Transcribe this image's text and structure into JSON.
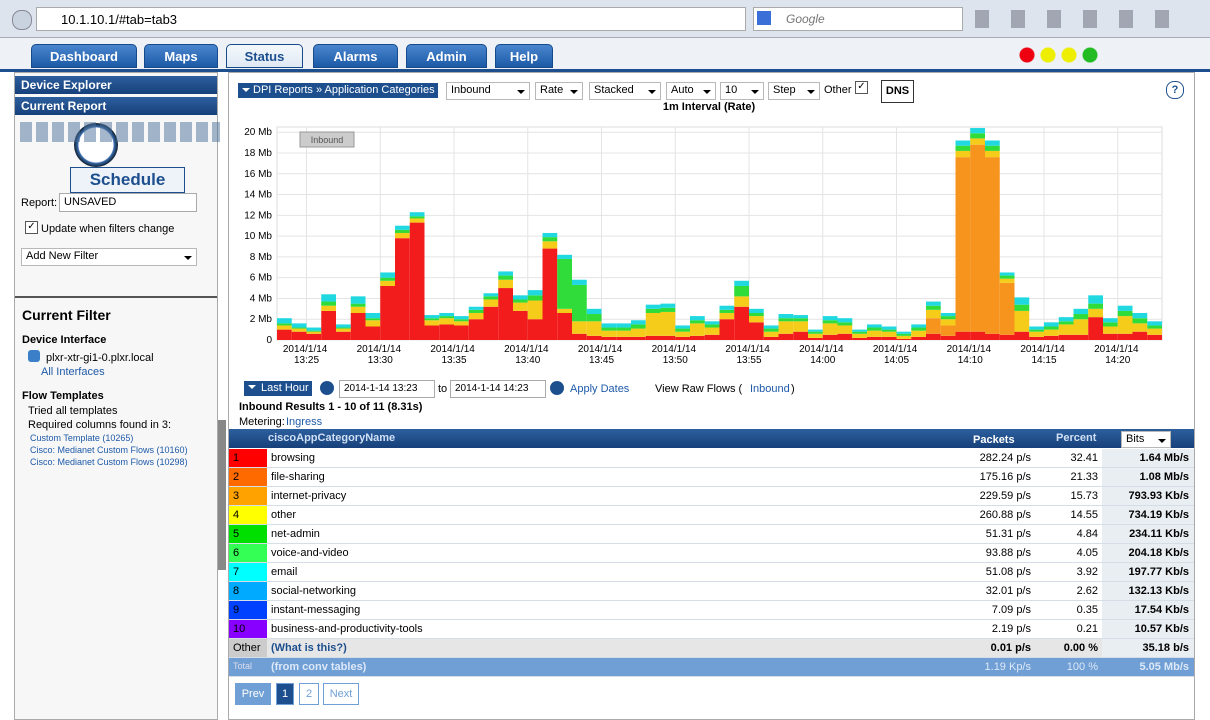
{
  "browser": {
    "url": "10.1.10.1/#tab=tab3",
    "search": "Google"
  },
  "tabs": [
    "Dashboard",
    "Maps",
    "Status",
    "Alarms",
    "Admin",
    "Help"
  ],
  "sidebar": {
    "device_explorer": "Device Explorer",
    "current_report": "Current Report",
    "schedule": "Schedule",
    "report_label": "Report:",
    "report_name": "UNSAVED",
    "update_checkbox": "Update when filters change",
    "add_filter": "Add New Filter",
    "current_filter": "Current Filter",
    "device_interface": "Device Interface",
    "interface": "plxr-xtr-gi1-0.plxr.local",
    "all_interfaces": "All Interfaces",
    "flow_templates": "Flow Templates",
    "tried": "Tried all templates",
    "required": "Required columns found in 3:",
    "templates": [
      "Custom Template (10265)",
      "Cisco: Medianet Custom Flows (10160)",
      "Cisco: Medianet Custom Flows (10298)"
    ]
  },
  "toolbar": {
    "breadcrumb": "DPI Reports » Application Categories",
    "selects": [
      "Inbound",
      "Rate",
      "Stacked",
      "Auto",
      "10",
      "Step"
    ],
    "other": "Other",
    "dns": "DNS"
  },
  "chart_data": {
    "type": "bar",
    "stacked": true,
    "title": "1m Interval (Rate)",
    "annotation": "Inbound",
    "grid": true,
    "ylim": [
      0,
      20.5
    ],
    "yticks": [
      0,
      {
        "value": 2,
        "label": "2 Mb"
      },
      {
        "value": 4,
        "label": "4 Mb"
      },
      {
        "value": 6,
        "label": "6 Mb"
      },
      {
        "value": 8,
        "label": "8 Mb"
      },
      {
        "value": 10,
        "label": "10 Mb"
      },
      {
        "value": 12,
        "label": "12 Mb"
      },
      {
        "value": 14,
        "label": "14 Mb"
      },
      {
        "value": 16,
        "label": "16 Mb"
      },
      {
        "value": 18,
        "label": "18 Mb"
      },
      {
        "value": 20,
        "label": "20 Mb"
      }
    ],
    "categories": [
      null,
      null,
      "2014/1/14 13:25",
      null,
      null,
      null,
      null,
      "2014/1/14 13:30",
      null,
      null,
      null,
      null,
      "2014/1/14 13:35",
      null,
      null,
      null,
      null,
      "2014/1/14 13:40",
      null,
      null,
      null,
      null,
      "2014/1/14 13:45",
      null,
      null,
      null,
      null,
      "2014/1/14 13:50",
      null,
      null,
      null,
      null,
      "2014/1/14 13:55",
      null,
      null,
      null,
      null,
      "2014/1/14 14:00",
      null,
      null,
      null,
      null,
      "2014/1/14 14:05",
      null,
      null,
      null,
      null,
      "2014/1/14 14:10",
      null,
      null,
      null,
      null,
      "2014/1/14 14:15",
      null,
      null,
      null,
      null,
      "2014/1/14 14:20",
      null,
      null
    ],
    "series": [
      {
        "name": "browsing",
        "color": "#f21c1c",
        "values": [
          1.0,
          0.8,
          0.6,
          2.8,
          0.8,
          2.6,
          1.3,
          5.2,
          9.8,
          11.3,
          1.4,
          1.5,
          1.4,
          2.0,
          3.2,
          5.0,
          2.8,
          2.0,
          8.8,
          2.6,
          0.6,
          0.4,
          0.3,
          0.3,
          0.3,
          0.4,
          0.4,
          0.3,
          0.4,
          0.5,
          2.0,
          3.2,
          1.7,
          0.3,
          0.6,
          0.8,
          0.2,
          0.5,
          0.6,
          0.2,
          0.3,
          0.3,
          0.1,
          0.3,
          0.6,
          0.4,
          0.8,
          0.8,
          0.6,
          0.5,
          0.8,
          0.3,
          0.4,
          0.5,
          0.5,
          2.2,
          0.6,
          0.6,
          0.8,
          0.5
        ]
      },
      {
        "name": "internet-privacy",
        "color": "#f7941d",
        "values": [
          0,
          0,
          0,
          0,
          0,
          0,
          0,
          0,
          0,
          0,
          0,
          0,
          0,
          0,
          0,
          0,
          0,
          0,
          0,
          0,
          0,
          0,
          0,
          0,
          0,
          0,
          0,
          0,
          0,
          0,
          0,
          0,
          0,
          0,
          0,
          0,
          0,
          0,
          0,
          0,
          0,
          0,
          0,
          0,
          1.5,
          1.0,
          16.8,
          18.0,
          17.0,
          5.0,
          0,
          0,
          0,
          0,
          0,
          0,
          0,
          0,
          0,
          0
        ]
      },
      {
        "name": "other",
        "color": "#f6cc1a",
        "values": [
          0.4,
          0.3,
          0.2,
          0.5,
          0.3,
          0.6,
          0.6,
          0.5,
          0.5,
          0.4,
          0.5,
          0.6,
          0.4,
          0.6,
          0.7,
          0.8,
          0.8,
          1.8,
          0.7,
          0.4,
          1.2,
          1.4,
          0.6,
          0.6,
          0.8,
          2.2,
          2.3,
          0.5,
          1.2,
          0.7,
          0.6,
          1.0,
          0.6,
          0.5,
          1.2,
          1.0,
          0.4,
          1.1,
          0.8,
          0.4,
          0.6,
          0.5,
          0.3,
          0.6,
          0.8,
          0.6,
          0.6,
          0.6,
          0.6,
          0.4,
          2.0,
          0.5,
          0.6,
          1.0,
          1.5,
          0.8,
          0.7,
          1.7,
          0.8,
          0.6
        ]
      },
      {
        "name": "net-admin",
        "color": "#2fdc3a",
        "values": [
          0.2,
          0.1,
          0.1,
          0.4,
          0.1,
          0.3,
          0.2,
          0.3,
          0.3,
          0.2,
          0.2,
          0.2,
          0.2,
          0.3,
          0.3,
          0.4,
          0.3,
          0.5,
          0.4,
          4.8,
          3.5,
          0.7,
          0.3,
          0.3,
          0.4,
          0.4,
          0.4,
          0.3,
          0.3,
          0.3,
          0.3,
          1.0,
          0.3,
          0.3,
          0.3,
          0.3,
          0.2,
          0.3,
          0.3,
          0.2,
          0.3,
          0.2,
          0.2,
          0.3,
          0.4,
          0.3,
          0.5,
          0.5,
          0.5,
          0.3,
          0.6,
          0.2,
          0.3,
          0.3,
          0.5,
          0.5,
          0.4,
          0.5,
          0.5,
          0.3
        ]
      },
      {
        "name": "email",
        "color": "#20d8e0",
        "values": [
          0.5,
          0.4,
          0.3,
          0.7,
          0.3,
          0.7,
          0.5,
          0.5,
          0.4,
          0.4,
          0.3,
          0.3,
          0.3,
          0.3,
          0.3,
          0.4,
          0.4,
          0.5,
          0.4,
          0.4,
          0.5,
          0.5,
          0.4,
          0.4,
          0.4,
          0.4,
          0.4,
          0.3,
          0.4,
          0.3,
          0.4,
          0.5,
          0.4,
          0.3,
          0.4,
          0.3,
          0.2,
          0.4,
          0.4,
          0.2,
          0.3,
          0.3,
          0.2,
          0.3,
          0.4,
          0.3,
          0.5,
          0.5,
          0.5,
          0.3,
          0.7,
          0.3,
          0.4,
          0.4,
          0.5,
          0.8,
          0.4,
          0.5,
          0.5,
          0.4
        ]
      }
    ]
  },
  "dates": {
    "range": "Last Hour",
    "from": "2014-1-14 13:23",
    "to_label": "to",
    "to": "2014-1-14 14:23",
    "apply": "Apply Dates",
    "raw_flows": "View Raw Flows (",
    "raw_link": "Inbound",
    "raw_close": ")"
  },
  "results": {
    "summary": "Inbound Results 1 - 10 of 11 (8.31s)",
    "metering_label": "Metering:",
    "metering": "Ingress"
  },
  "table": {
    "headers": [
      "ciscoAppCategoryName",
      "Packets",
      "Percent",
      "Bits"
    ],
    "colors": [
      "#ff0000",
      "#ff6a00",
      "#ffa200",
      "#ffff00",
      "#00e000",
      "#33ff55",
      "#00ffff",
      "#00aaff",
      "#0040ff",
      "#8800ff"
    ],
    "rows": [
      [
        "1",
        "browsing",
        "282.24 p/s",
        "32.41",
        "1.64 Mb/s"
      ],
      [
        "2",
        "file-sharing",
        "175.16 p/s",
        "21.33",
        "1.08 Mb/s"
      ],
      [
        "3",
        "internet-privacy",
        "229.59 p/s",
        "15.73",
        "793.93 Kb/s"
      ],
      [
        "4",
        "other",
        "260.88 p/s",
        "14.55",
        "734.19 Kb/s"
      ],
      [
        "5",
        "net-admin",
        "51.31 p/s",
        "4.84",
        "234.11 Kb/s"
      ],
      [
        "6",
        "voice-and-video",
        "93.88 p/s",
        "4.05",
        "204.18 Kb/s"
      ],
      [
        "7",
        "email",
        "51.08 p/s",
        "3.92",
        "197.77 Kb/s"
      ],
      [
        "8",
        "social-networking",
        "32.01 p/s",
        "2.62",
        "132.13 Kb/s"
      ],
      [
        "9",
        "instant-messaging",
        "7.09 p/s",
        "0.35",
        "17.54 Kb/s"
      ],
      [
        "10",
        "business-and-productivity-tools",
        "2.19 p/s",
        "0.21",
        "10.57 Kb/s"
      ],
      [
        "Other",
        "(What is this?)",
        "0.01 p/s",
        "0.00 %",
        "35.18 b/s"
      ],
      [
        "Total",
        "(from conv tables)",
        "1.19 Kp/s",
        "100 %",
        "5.05 Mb/s"
      ]
    ]
  },
  "pagination": [
    "Prev",
    "1",
    "2",
    "Next"
  ]
}
